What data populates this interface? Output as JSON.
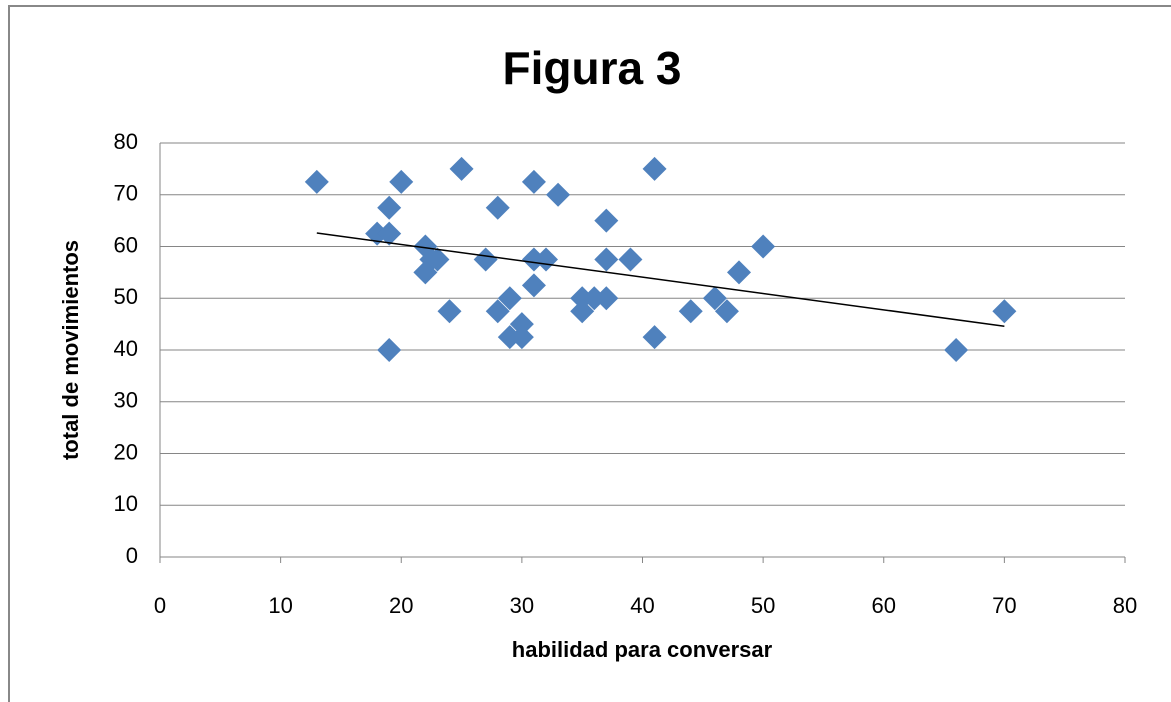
{
  "chart_data": {
    "type": "scatter",
    "title": "Figura 3",
    "x_label": "habilidad para conversar",
    "y_label": "total de movimientos",
    "x": [
      13,
      20,
      25,
      19,
      18,
      19,
      22,
      22.5,
      23,
      22,
      24,
      19,
      27,
      28,
      28,
      29,
      29,
      30,
      30,
      31,
      33,
      31,
      32,
      31,
      35,
      35,
      36,
      37,
      37,
      37,
      39,
      41,
      41,
      44,
      46,
      47,
      48,
      50,
      66,
      70
    ],
    "series": [
      {
        "color": "#4f81bd",
        "values": [
          72.5,
          72.5,
          75,
          67.5,
          62.5,
          62.5,
          60,
          57.5,
          57.5,
          55,
          47.5,
          40,
          57.5,
          67.5,
          47.5,
          50,
          42.5,
          45,
          42.5,
          72.5,
          70,
          57.5,
          57.5,
          52.5,
          50,
          47.5,
          50,
          50,
          65,
          57.5,
          57.5,
          75,
          42.5,
          47.5,
          50,
          47.5,
          55,
          60,
          40,
          47.5
        ]
      }
    ],
    "trendline": {
      "x": [
        13,
        70
      ],
      "y": [
        62.6,
        44.6
      ],
      "color": "#000000"
    },
    "xlim": [
      0,
      80
    ],
    "xticks": [
      0,
      10,
      20,
      30,
      40,
      50,
      60,
      70,
      80
    ],
    "ylim": [
      0,
      80
    ],
    "yticks": [
      0,
      10,
      20,
      30,
      40,
      50,
      60,
      70,
      80
    ],
    "grid": true
  }
}
